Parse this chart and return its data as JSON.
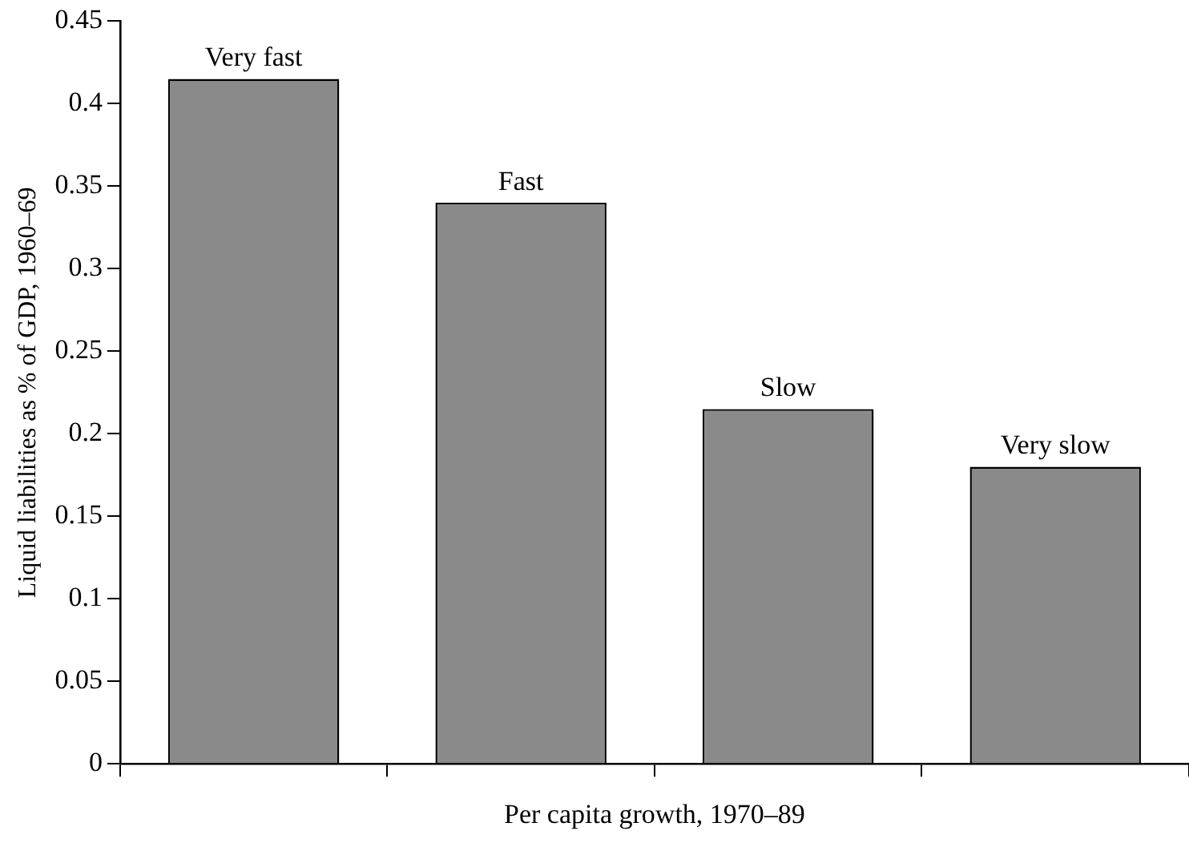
{
  "chart_data": {
    "type": "bar",
    "xlabel": "Per capita growth, 1970–89",
    "ylabel": "Liquid liabilities as % of GDP, 1960–69",
    "categories": [
      "Very fast",
      "Fast",
      "Slow",
      "Very slow"
    ],
    "values": [
      0.415,
      0.34,
      0.215,
      0.18
    ],
    "color": "#8a8a8a",
    "ylim": [
      0,
      0.45
    ],
    "yticks": [
      0,
      0.05,
      0.1,
      0.15,
      0.2,
      0.25,
      0.3,
      0.35,
      0.4,
      0.45
    ],
    "grid": false,
    "legend": false
  }
}
